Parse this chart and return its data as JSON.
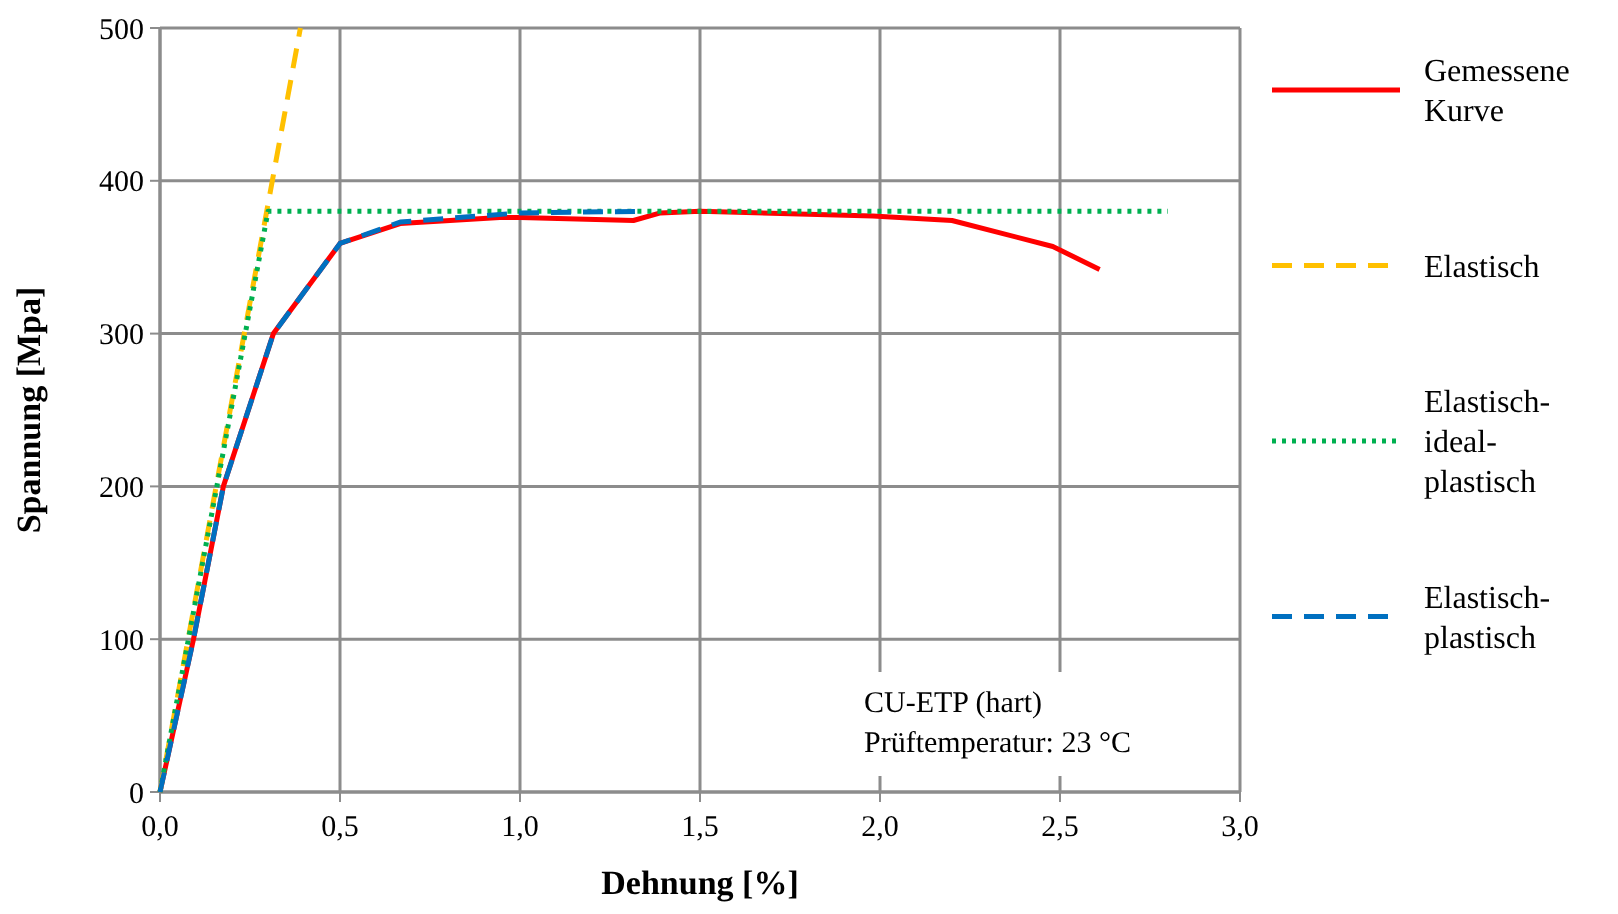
{
  "chart_data": {
    "type": "line",
    "xlabel": "Dehnung [%]",
    "ylabel": "Spannung [Mpa]",
    "xlim": [
      0,
      3
    ],
    "ylim": [
      0,
      500
    ],
    "xticks": [
      {
        "value": 0,
        "label": "0,0"
      },
      {
        "value": 0.5,
        "label": "0,5"
      },
      {
        "value": 1,
        "label": "1,0"
      },
      {
        "value": 1.5,
        "label": "1,5"
      },
      {
        "value": 2,
        "label": "2,0"
      },
      {
        "value": 2.5,
        "label": "2,5"
      },
      {
        "value": 3,
        "label": "3,0"
      }
    ],
    "yticks": [
      0,
      100,
      200,
      300,
      400,
      500
    ],
    "grid": true,
    "legend": "right",
    "annotations": [
      "CU-ETP (hart)",
      "Prüftemperatur: 23 °C"
    ],
    "series": [
      {
        "name": "Gemessene Kurve",
        "color": "#ff0000",
        "line_style": "solid",
        "x": [
          0,
          0.093,
          0.176,
          0.315,
          0.5,
          0.667,
          0.944,
          1.0,
          1.315,
          1.39,
          1.5,
          1.98,
          2.2,
          2.48,
          2.61
        ],
        "values": [
          0,
          100,
          200,
          300,
          359,
          372,
          376,
          376,
          374,
          379,
          380,
          377,
          374,
          357,
          342
        ]
      },
      {
        "name": "Elastisch",
        "color": "#ffc000",
        "line_style": "dashed",
        "x": [
          0,
          0.39
        ],
        "values": [
          0,
          500
        ]
      },
      {
        "name": "Elastisch-ideal-plastisch",
        "color": "#00b050",
        "line_style": "dotted",
        "x": [
          0,
          0.3,
          2.8
        ],
        "values": [
          0,
          380,
          380
        ]
      },
      {
        "name": "Elastisch-plastisch",
        "color": "#0070c0",
        "line_style": "dashed",
        "x": [
          0,
          0.093,
          0.176,
          0.315,
          0.5,
          0.667,
          1.0,
          1.33
        ],
        "values": [
          0,
          100,
          200,
          300,
          359,
          373,
          379,
          380
        ]
      }
    ]
  }
}
